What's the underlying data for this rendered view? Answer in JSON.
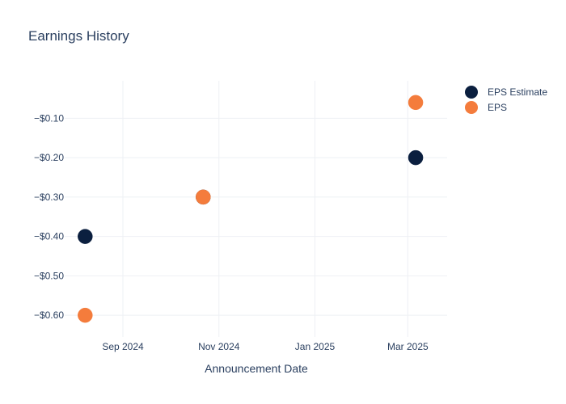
{
  "chart_data": {
    "type": "scatter",
    "title": "Earnings History",
    "xlabel": "Announcement Date",
    "ylabel": "",
    "x_ticks": [
      {
        "date": "2024-09-01",
        "label": "Sep 2024"
      },
      {
        "date": "2024-11-01",
        "label": "Nov 2024"
      },
      {
        "date": "2025-01-01",
        "label": "Jan 2025"
      },
      {
        "date": "2025-03-01",
        "label": "Mar 2025"
      }
    ],
    "y_ticks": [
      {
        "value": -0.1,
        "label": "−$0.10"
      },
      {
        "value": -0.2,
        "label": "−$0.20"
      },
      {
        "value": -0.3,
        "label": "−$0.30"
      },
      {
        "value": -0.4,
        "label": "−$0.40"
      },
      {
        "value": -0.5,
        "label": "−$0.50"
      },
      {
        "value": -0.6,
        "label": "−$0.60"
      }
    ],
    "xlim": [
      "2024-07-26",
      "2025-03-26"
    ],
    "ylim": [
      -0.655,
      -0.005
    ],
    "grid": true,
    "legend_position": "top-right",
    "series": [
      {
        "name": "EPS Estimate",
        "color": "#0b1f3f",
        "points": [
          {
            "x": "2024-08-08",
            "y": -0.4
          },
          {
            "x": "2024-10-22",
            "y": -0.3
          },
          {
            "x": "2025-03-06",
            "y": -0.2
          }
        ]
      },
      {
        "name": "EPS",
        "color": "#f47c3c",
        "points": [
          {
            "x": "2024-08-08",
            "y": -0.6
          },
          {
            "x": "2024-10-22",
            "y": -0.3
          },
          {
            "x": "2025-03-06",
            "y": -0.06
          }
        ]
      }
    ]
  }
}
